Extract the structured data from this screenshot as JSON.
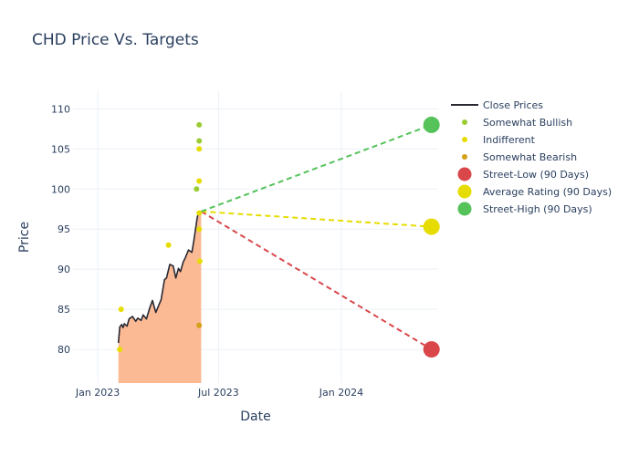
{
  "chart_data": {
    "type": "line",
    "title": "CHD Price Vs. Targets",
    "xlabel": "Date",
    "ylabel": "Price",
    "xlim": [
      "2022-11-25",
      "2024-05-25"
    ],
    "ylim": [
      75.8,
      112.2
    ],
    "x_ticks": [
      {
        "date": "2023-01-01",
        "label": "Jan 2023"
      },
      {
        "date": "2023-07-01",
        "label": "Jul 2023"
      },
      {
        "date": "2024-01-01",
        "label": "Jan 2024"
      }
    ],
    "y_ticks": [
      80,
      85,
      90,
      95,
      100,
      105,
      110
    ],
    "grid": true,
    "legend_position": "top-right",
    "close_prices": {
      "name": "Close Prices",
      "color": "#2a2a35",
      "fill_color": "#fbb994",
      "x": [
        "2023-02-01",
        "2023-02-03",
        "2023-02-06",
        "2023-02-08",
        "2023-02-10",
        "2023-02-14",
        "2023-02-17",
        "2023-02-22",
        "2023-02-27",
        "2023-03-02",
        "2023-03-07",
        "2023-03-10",
        "2023-03-15",
        "2023-03-20",
        "2023-03-24",
        "2023-03-29",
        "2023-04-03",
        "2023-04-06",
        "2023-04-11",
        "2023-04-14",
        "2023-04-19",
        "2023-04-24",
        "2023-04-28",
        "2023-05-02",
        "2023-05-05",
        "2023-05-09",
        "2023-05-12",
        "2023-05-17",
        "2023-05-22",
        "2023-05-25",
        "2023-05-30",
        "2023-06-01",
        "2023-06-02",
        "2023-06-05"
      ],
      "y": [
        80.8,
        82.8,
        83.1,
        82.7,
        83.2,
        82.9,
        83.8,
        84.1,
        83.5,
        83.9,
        83.6,
        84.3,
        83.8,
        85.2,
        86.1,
        84.6,
        85.6,
        86.2,
        88.7,
        88.9,
        90.6,
        90.4,
        88.9,
        90.1,
        89.7,
        90.9,
        91.4,
        92.4,
        92.1,
        93.6,
        96.4,
        97.1,
        97.0,
        97.2
      ]
    },
    "analyst_ratings": [
      {
        "name": "Somewhat Bullish",
        "color": "#9acd32",
        "points": [
          {
            "x": "2023-05-29",
            "y": 100
          },
          {
            "x": "2023-06-02",
            "y": 106
          },
          {
            "x": "2023-06-02",
            "y": 108
          }
        ]
      },
      {
        "name": "Indifferent",
        "color": "#e6dc00",
        "points": [
          {
            "x": "2023-02-03",
            "y": 80
          },
          {
            "x": "2023-02-05",
            "y": 85
          },
          {
            "x": "2023-04-17",
            "y": 93
          },
          {
            "x": "2023-06-02",
            "y": 95
          },
          {
            "x": "2023-06-02",
            "y": 97
          },
          {
            "x": "2023-06-02",
            "y": 101
          },
          {
            "x": "2023-06-02",
            "y": 105
          },
          {
            "x": "2023-06-03",
            "y": 91
          }
        ]
      },
      {
        "name": "Somewhat Bearish",
        "color": "#d4a017",
        "points": [
          {
            "x": "2023-06-02",
            "y": 83
          }
        ]
      }
    ],
    "targets": [
      {
        "name": "Street-Low (90 Days)",
        "color": "#d9474b",
        "from": {
          "x": "2023-06-05",
          "y": 97.2
        },
        "to": {
          "x": "2024-05-15",
          "y": 80
        }
      },
      {
        "name": "Average Rating (90 Days)",
        "color": "#e6dc00",
        "from": {
          "x": "2023-06-05",
          "y": 97.2
        },
        "to": {
          "x": "2024-05-15",
          "y": 95.3
        }
      },
      {
        "name": "Street-High (90 Days)",
        "color": "#55c25a",
        "from": {
          "x": "2023-06-05",
          "y": 97.2
        },
        "to": {
          "x": "2024-05-15",
          "y": 108
        }
      }
    ]
  }
}
